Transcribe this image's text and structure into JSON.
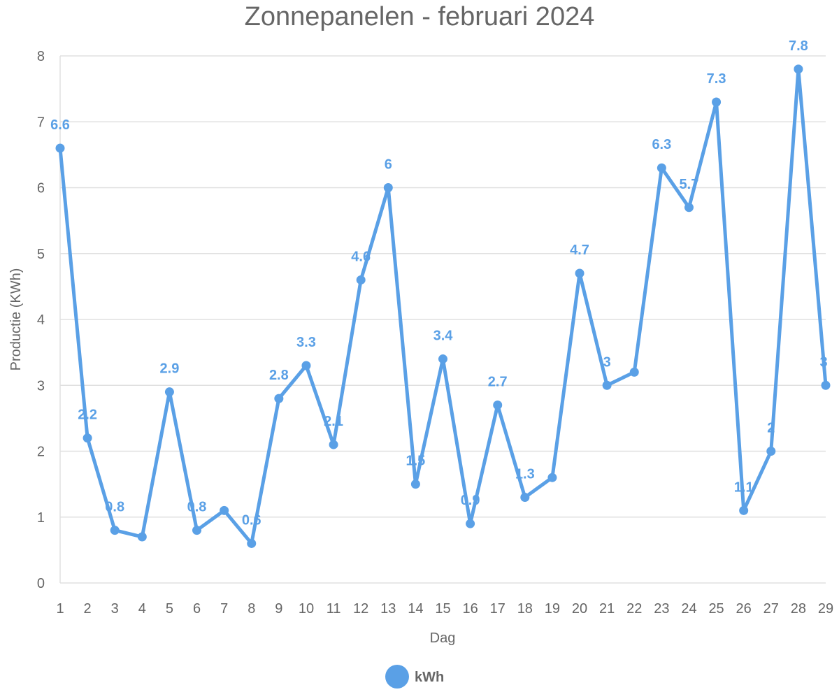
{
  "chart_data": {
    "type": "line",
    "title": "Zonnepanelen - februari 2024",
    "xlabel": "Dag",
    "ylabel": "Productie (KWh)",
    "ylim": [
      0,
      8
    ],
    "yticks": [
      "0",
      "1",
      "2",
      "3",
      "4",
      "5",
      "6",
      "7",
      "8"
    ],
    "categories": [
      "1",
      "2",
      "3",
      "4",
      "5",
      "6",
      "7",
      "8",
      "9",
      "10",
      "11",
      "12",
      "13",
      "14",
      "15",
      "16",
      "17",
      "18",
      "19",
      "20",
      "21",
      "22",
      "23",
      "24",
      "25",
      "26",
      "27",
      "28",
      "29"
    ],
    "grid": true,
    "legend_position": "bottom",
    "series": [
      {
        "name": "kWh",
        "color": "#5aa0e6",
        "values": [
          6.6,
          2.2,
          0.8,
          0.7,
          2.9,
          0.8,
          1.1,
          0.6,
          2.8,
          3.3,
          2.1,
          4.6,
          6,
          1.5,
          3.4,
          0.9,
          2.7,
          1.3,
          1.6,
          4.7,
          3,
          3.2,
          6.3,
          5.7,
          7.3,
          1.1,
          2,
          7.8,
          3
        ],
        "labels": [
          "6.6",
          "2.2",
          "0.8",
          "",
          "2.9",
          "0.8",
          "",
          "0.6",
          "2.8",
          "3.3",
          "2.1",
          "4.6",
          "6",
          "1.5",
          "3.4",
          "0.9",
          "2.7",
          "1.3",
          "",
          "4.7",
          "3",
          "",
          "6.3",
          "5.7",
          "7.3",
          "1.1",
          "2",
          "7.8",
          "3"
        ]
      }
    ]
  }
}
